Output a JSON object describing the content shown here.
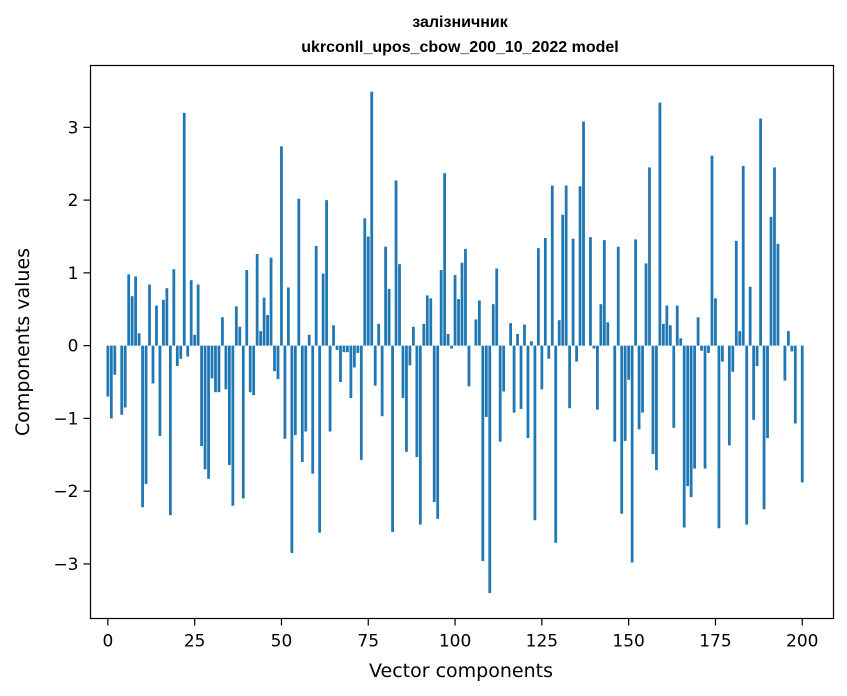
{
  "chart_data": {
    "type": "bar",
    "title_lines": [
      "залізничник",
      "ukrconll_upos_cbow_200_10_2022 model"
    ],
    "xlabel": "Vector components",
    "ylabel": "Components values",
    "xlim": [
      -5,
      209
    ],
    "ylim": [
      -3.75,
      3.85
    ],
    "xticks": [
      0,
      25,
      50,
      75,
      100,
      125,
      150,
      175,
      200
    ],
    "yticks": [
      -3,
      -2,
      -1,
      0,
      1,
      2,
      3
    ],
    "grid": false,
    "bar_color": "#1f77b4",
    "values": [
      -0.7,
      -1.0,
      -0.4,
      0.0,
      -0.95,
      -0.85,
      0.98,
      0.68,
      0.95,
      0.17,
      -2.22,
      -1.9,
      0.84,
      -0.52,
      0.55,
      -1.24,
      0.63,
      0.79,
      -2.33,
      1.05,
      -0.28,
      -0.18,
      3.2,
      -0.15,
      0.9,
      0.15,
      0.84,
      -1.38,
      -1.7,
      -1.83,
      -0.45,
      -0.64,
      -0.64,
      0.39,
      -0.6,
      -1.64,
      -2.2,
      0.54,
      0.26,
      -2.1,
      1.04,
      -0.64,
      -0.68,
      1.26,
      0.2,
      0.66,
      0.42,
      1.21,
      -0.35,
      -0.46,
      2.74,
      -1.28,
      0.8,
      -2.85,
      -1.23,
      2.02,
      -1.6,
      -1.18,
      0.15,
      -1.76,
      1.37,
      -2.57,
      0.99,
      2.0,
      -1.18,
      0.28,
      -0.06,
      -0.5,
      -0.09,
      -0.09,
      -0.72,
      -0.3,
      -0.1,
      -1.57,
      1.75,
      1.5,
      3.49,
      -0.55,
      0.3,
      -0.97,
      1.36,
      0.78,
      -2.56,
      2.27,
      1.12,
      -0.72,
      -1.46,
      -0.27,
      0.26,
      -1.53,
      -2.46,
      0.3,
      0.69,
      0.65,
      -2.15,
      -2.38,
      1.04,
      2.37,
      0.16,
      -0.04,
      0.97,
      0.64,
      1.14,
      1.33,
      -0.56,
      0.0,
      0.36,
      0.62,
      -2.96,
      -0.98,
      -3.4,
      0.57,
      1.06,
      -1.32,
      -0.63,
      0.0,
      0.31,
      -0.92,
      0.16,
      -0.87,
      0.29,
      -1.27,
      0.06,
      -2.4,
      1.34,
      -0.6,
      1.48,
      -0.18,
      2.2,
      -2.71,
      0.35,
      1.8,
      2.2,
      -0.86,
      1.47,
      -0.22,
      2.19,
      3.08,
      0.0,
      1.49,
      -0.04,
      -0.88,
      0.57,
      1.45,
      0.32,
      0.0,
      -1.32,
      1.36,
      -2.31,
      -1.31,
      -0.47,
      -2.98,
      1.46,
      -1.15,
      -0.92,
      1.13,
      2.45,
      -1.49,
      -1.71,
      3.34,
      0.3,
      0.55,
      0.28,
      -1.13,
      0.55,
      0.1,
      -2.5,
      -1.93,
      -2.08,
      -1.69,
      0.39,
      -0.07,
      -1.69,
      -0.1,
      2.61,
      0.65,
      -2.51,
      -0.22,
      0.0,
      -1.37,
      -0.36,
      1.44,
      0.2,
      2.47,
      -2.46,
      0.81,
      -1.02,
      -0.28,
      3.12,
      -2.25,
      -1.27,
      1.77,
      2.45,
      1.4,
      0.0,
      -0.48,
      0.2,
      -0.08,
      -1.07,
      0.0,
      -1.88
    ]
  }
}
